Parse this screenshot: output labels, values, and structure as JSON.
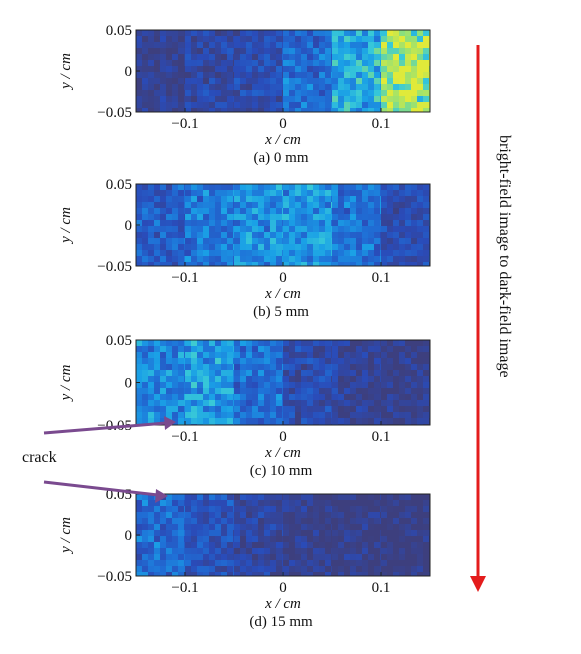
{
  "side_label": "bright-field image to dark-field image",
  "arrow_color": "#e41c1c",
  "crack_label": "crack",
  "crack_arrow_color": "#7a4a8f",
  "colormap": [
    "#3d3f7e",
    "#2a4bb8",
    "#1f6fd6",
    "#1aa0e6",
    "#38c9d8",
    "#8ee07a",
    "#e0ea3a"
  ],
  "axis_tick_labels": {
    "x": [
      "-0.1",
      "0",
      "0.1"
    ],
    "y": [
      "0.05",
      "0",
      "-0.05"
    ]
  },
  "chart_data": [
    {
      "type": "heatmap",
      "caption": "(a) 0 mm",
      "xlabel": "x / cm",
      "ylabel": "y / cm",
      "xlim": [
        -0.15,
        0.15
      ],
      "ylim": [
        -0.05,
        0.05
      ],
      "xticks": [
        -0.1,
        0,
        0.1
      ],
      "yticks": [
        0.05,
        0,
        -0.05
      ],
      "x_bands": [
        -0.125,
        -0.075,
        -0.025,
        0.025,
        0.075,
        0.125
      ],
      "band_mean_intensity": [
        0.05,
        0.12,
        0.15,
        0.32,
        0.55,
        0.88
      ]
    },
    {
      "type": "heatmap",
      "caption": "(b) 5 mm",
      "xlabel": "x / cm",
      "ylabel": "y / cm",
      "xlim": [
        -0.15,
        0.15
      ],
      "ylim": [
        -0.05,
        0.05
      ],
      "xticks": [
        -0.1,
        0,
        0.1
      ],
      "yticks": [
        0.05,
        0,
        -0.05
      ],
      "x_bands": [
        -0.125,
        -0.075,
        -0.025,
        0.025,
        0.075,
        0.125
      ],
      "band_mean_intensity": [
        0.25,
        0.36,
        0.45,
        0.45,
        0.32,
        0.16
      ]
    },
    {
      "type": "heatmap",
      "caption": "(c) 10 mm",
      "xlabel": "x / cm",
      "ylabel": "y / cm",
      "xlim": [
        -0.15,
        0.15
      ],
      "ylim": [
        -0.05,
        0.05
      ],
      "xticks": [
        -0.1,
        0,
        0.1
      ],
      "yticks": [
        0.05,
        0,
        -0.05
      ],
      "x_bands": [
        -0.125,
        -0.075,
        -0.025,
        0.025,
        0.075,
        0.125
      ],
      "band_mean_intensity": [
        0.42,
        0.48,
        0.32,
        0.15,
        0.08,
        0.04
      ]
    },
    {
      "type": "heatmap",
      "caption": "(d) 15 mm",
      "xlabel": "x / cm",
      "ylabel": "y / cm",
      "xlim": [
        -0.15,
        0.15
      ],
      "ylim": [
        -0.05,
        0.05
      ],
      "xticks": [
        -0.1,
        0,
        0.1
      ],
      "yticks": [
        0.05,
        0,
        -0.05
      ],
      "x_bands": [
        -0.125,
        -0.075,
        -0.025,
        0.025,
        0.075,
        0.125
      ],
      "band_mean_intensity": [
        0.3,
        0.2,
        0.1,
        0.05,
        0.02,
        0.01
      ]
    }
  ]
}
